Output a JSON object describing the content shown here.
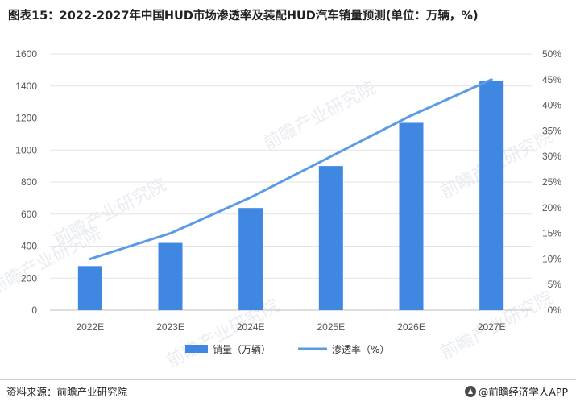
{
  "title": "图表15：2022-2027年中国HUD市场渗透率及装配HUD汽车销量预测(单位：万辆，%)",
  "source": "资料来源：前瞻产业研究院",
  "brand": "@前瞻经济学人APP",
  "watermark": "前瞻产业研究院",
  "colors": {
    "bar": "#3f87e0",
    "line": "#5b9be6"
  },
  "chart_data": {
    "type": "bar",
    "categories": [
      "2022E",
      "2023E",
      "2024E",
      "2025E",
      "2026E",
      "2027E"
    ],
    "series": [
      {
        "name": "销量（万辆）",
        "type": "bar",
        "axis": "left",
        "values": [
          275,
          420,
          638,
          900,
          1170,
          1430
        ]
      },
      {
        "name": "渗透率（%）",
        "type": "line",
        "axis": "right",
        "values": [
          10,
          15,
          22,
          30,
          38,
          45
        ]
      }
    ],
    "ylim_left": [
      0,
      1600
    ],
    "yticks_left": [
      "0",
      "200",
      "400",
      "600",
      "800",
      "1000",
      "1200",
      "1400",
      "1600"
    ],
    "ylim_right": [
      0,
      50
    ],
    "yticks_right": [
      "0%",
      "5%",
      "10%",
      "15%",
      "20%",
      "25%",
      "30%",
      "35%",
      "40%",
      "45%",
      "50%"
    ],
    "legend_position": "bottom",
    "grid": true
  }
}
